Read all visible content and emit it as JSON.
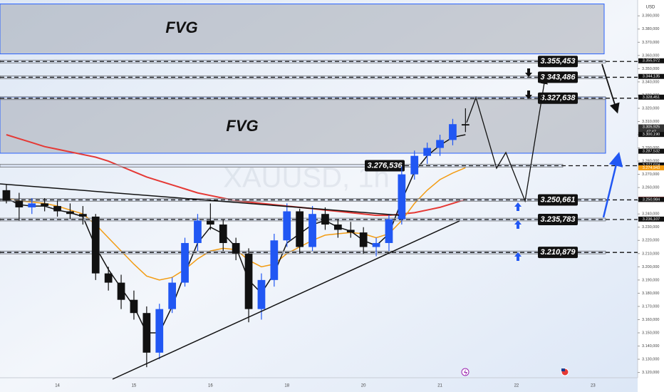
{
  "chart_data": {
    "type": "candlestick",
    "watermark": "XAUUSD, 1h",
    "currency": "USD",
    "categories": [
      null,
      null,
      null,
      null,
      "14",
      null,
      null,
      null,
      null,
      null,
      "15",
      null,
      null,
      null,
      null,
      null,
      "16",
      null,
      null,
      null,
      null,
      null,
      "18",
      null,
      null,
      null,
      null,
      null,
      "20",
      null,
      null,
      null,
      null,
      null,
      "21",
      null,
      null,
      null,
      null,
      null,
      "22",
      null,
      null,
      null,
      null,
      null,
      "23",
      null,
      null,
      null
    ],
    "open": [
      3258,
      3250,
      3245,
      3248,
      3246,
      3242,
      3240,
      3238,
      3195,
      3188,
      3175,
      3165,
      3135,
      3168,
      3188,
      3218,
      3235,
      3232,
      3218,
      3210,
      3168,
      3190,
      3220,
      3242,
      3215,
      3240,
      3232,
      3228,
      3226,
      3215,
      3218,
      3236,
      3270,
      3284,
      3290,
      3296,
      3308,
      null,
      null,
      null,
      null,
      null,
      null,
      null,
      null,
      null,
      null,
      null,
      null,
      null
    ],
    "high": [
      3262,
      3256,
      3252,
      3252,
      3250,
      3248,
      3246,
      3240,
      3200,
      3194,
      3182,
      3170,
      3172,
      3192,
      3222,
      3240,
      3248,
      3236,
      3222,
      3214,
      3195,
      3225,
      3248,
      3244,
      3246,
      3245,
      3236,
      3234,
      3230,
      3222,
      3240,
      3276,
      3288,
      3294,
      3300,
      3312,
      3320,
      null,
      null,
      null,
      null,
      null,
      null,
      null,
      null,
      null,
      null,
      null,
      null,
      null
    ],
    "low": [
      3248,
      3235,
      3240,
      3242,
      3238,
      3236,
      3232,
      3190,
      3182,
      3168,
      3160,
      3124,
      3130,
      3165,
      3185,
      3212,
      3228,
      3212,
      3205,
      3158,
      3160,
      3185,
      3215,
      3210,
      3212,
      3228,
      3222,
      3222,
      3210,
      3208,
      3212,
      3232,
      3266,
      3278,
      3284,
      3292,
      3302,
      null,
      null,
      null,
      null,
      null,
      null,
      null,
      null,
      null,
      null,
      null,
      null,
      null
    ],
    "close": [
      3250,
      3245,
      3248,
      3246,
      3242,
      3240,
      3238,
      3195,
      3188,
      3175,
      3165,
      3135,
      3168,
      3188,
      3218,
      3235,
      3232,
      3218,
      3210,
      3168,
      3190,
      3220,
      3242,
      3215,
      3240,
      3232,
      3228,
      3226,
      3215,
      3218,
      3236,
      3270,
      3284,
      3290,
      3296,
      3308,
      3307,
      null,
      null,
      null,
      null,
      null,
      null,
      null,
      null,
      null,
      null,
      null,
      null,
      null
    ],
    "up_color": "#2157f3",
    "down_color": "#111111",
    "overlays": [
      {
        "color": "#e53935",
        "values": [
          3300,
          3297,
          3294,
          3291,
          3289,
          3287,
          3285,
          3283,
          3280,
          3276,
          3272,
          3268,
          3265,
          3262,
          3259,
          3256,
          3254,
          3252,
          3250,
          3249,
          3248,
          3247,
          3246,
          3245,
          3244,
          3243,
          3242,
          3241,
          3240,
          3239,
          3239,
          3240,
          3241,
          3243,
          3245,
          3248,
          3251,
          null,
          null,
          null,
          null,
          null,
          null,
          null,
          null,
          null,
          null,
          null,
          null,
          null
        ]
      },
      {
        "color": "#f39c12",
        "values": [
          3252,
          3250,
          3249,
          3248,
          3246,
          3243,
          3240,
          3232,
          3222,
          3212,
          3202,
          3193,
          3190,
          3192,
          3198,
          3206,
          3212,
          3214,
          3213,
          3205,
          3200,
          3202,
          3210,
          3215,
          3220,
          3224,
          3225,
          3226,
          3225,
          3222,
          3225,
          3235,
          3248,
          3258,
          3266,
          3271,
          3275,
          null,
          null,
          null,
          null,
          null,
          null,
          null,
          null,
          null,
          null,
          null,
          null,
          null
        ]
      },
      {
        "color": "#111111",
        "values": [
          3252,
          3247,
          3246,
          3246,
          3243,
          3241,
          3238,
          3215,
          3198,
          3184,
          3170,
          3150,
          3150,
          3170,
          3195,
          3218,
          3230,
          3225,
          3215,
          3190,
          3180,
          3195,
          3218,
          3225,
          3232,
          3235,
          3230,
          3227,
          3220,
          3216,
          3225,
          3250,
          3272,
          3284,
          3292,
          3298,
          3300,
          null,
          null,
          null,
          null,
          null,
          null,
          null,
          null,
          null,
          null,
          null,
          null,
          null
        ]
      }
    ],
    "zones": [
      {
        "label": "FVG",
        "range": [
          3361.2,
          3399
        ]
      },
      {
        "label": "FVG",
        "range": [
          3286,
          3328.5
        ]
      }
    ],
    "levels": [
      {
        "value": 3355.453,
        "label": "3.355,453"
      },
      {
        "value": 3343.486,
        "label": "3.343,486"
      },
      {
        "value": 3327.638,
        "label": "3.327,638"
      },
      {
        "value": 3276.536,
        "label": "3.276,536"
      },
      {
        "value": 3250.661,
        "label": "3.250,661"
      },
      {
        "value": 3235.783,
        "label": "3.235,783"
      },
      {
        "value": 3210.879,
        "label": "3.210,879"
      }
    ],
    "price_tags": [
      {
        "value": 3355.972,
        "label": "3.355,972",
        "color": "#111111"
      },
      {
        "value": 3344.135,
        "label": "3.344,135",
        "color": "#111111"
      },
      {
        "value": 3328.451,
        "label": "3.328,451",
        "color": "#111111"
      },
      {
        "value": 3305.925,
        "label": "3.305,925",
        "color": "#333333",
        "countdown": "47:47"
      },
      {
        "value": 3300.19,
        "label": "3.300,190",
        "color": "#111111"
      },
      {
        "value": 3287.532,
        "label": "3.287,532",
        "color": "#111111"
      },
      {
        "value": 3277.074,
        "label": "3.277,074",
        "color": "#111111"
      },
      {
        "value": 3274.943,
        "label": "3.274,943",
        "color": "#f39c12"
      },
      {
        "value": 3251.129,
        "label": "3.251,129",
        "color": "#e53935"
      },
      {
        "value": 3250.984,
        "label": "3.250,984",
        "color": "#111111"
      },
      {
        "value": 3236.107,
        "label": "3.236,107",
        "color": "#111111"
      }
    ],
    "ylim": [
      3116,
      3402
    ],
    "yticks": [
      {
        "value": 3390,
        "label": "3.390,000"
      },
      {
        "value": 3380,
        "label": "3.380,000"
      },
      {
        "value": 3370,
        "label": "3.370,000"
      },
      {
        "value": 3360,
        "label": "3.360,000"
      },
      {
        "value": 3350,
        "label": "3.350,000"
      },
      {
        "value": 3340,
        "label": "3.340,000"
      },
      {
        "value": 3330,
        "label": "3.330,000"
      },
      {
        "value": 3320,
        "label": "3.320,000"
      },
      {
        "value": 3310,
        "label": "3.310,000"
      },
      {
        "value": 3300,
        "label": "3.300,000"
      },
      {
        "value": 3290,
        "label": "3.290,000"
      },
      {
        "value": 3280,
        "label": "3.280,000"
      },
      {
        "value": 3270,
        "label": "3.270,000"
      },
      {
        "value": 3260,
        "label": "3.260,000"
      },
      {
        "value": 3250,
        "label": "3.250,000"
      },
      {
        "value": 3240,
        "label": "3.240,000"
      },
      {
        "value": 3230,
        "label": "3.230,000"
      },
      {
        "value": 3220,
        "label": "3.220,000"
      },
      {
        "value": 3210,
        "label": "3.210,000"
      },
      {
        "value": 3200,
        "label": "3.200,000"
      },
      {
        "value": 3190,
        "label": "3.190,000"
      },
      {
        "value": 3180,
        "label": "3.180,000"
      },
      {
        "value": 3170,
        "label": "3.170,000"
      },
      {
        "value": 3160,
        "label": "3.160,000"
      },
      {
        "value": 3150,
        "label": "3.150,000"
      },
      {
        "value": 3140,
        "label": "3.140,000"
      },
      {
        "value": 3130,
        "label": "3.130,000"
      },
      {
        "value": 3120,
        "label": "3.120,000"
      }
    ]
  }
}
